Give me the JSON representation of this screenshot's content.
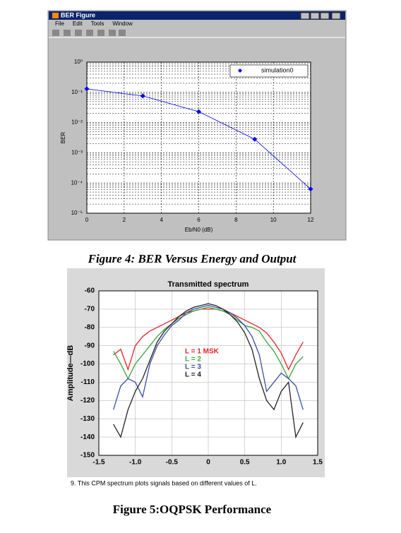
{
  "window": {
    "title": "BER Figure",
    "menu": [
      "File",
      "Edit",
      "Tools",
      "Window"
    ]
  },
  "chart_data": [
    {
      "type": "line",
      "ylabel": "BER",
      "xlabel": "Eb/N0 (dB)",
      "x": [
        0,
        3,
        6,
        9,
        12
      ],
      "series": [
        {
          "name": "simulation0",
          "color": "#0000ff",
          "values": [
            0.13,
            0.076,
            0.023,
            0.0028,
            6.3e-05
          ]
        }
      ],
      "marker": "diamond",
      "log_y": true,
      "xlim": [
        0,
        12
      ],
      "xticks": [
        0,
        2,
        4,
        6,
        8,
        10,
        12
      ],
      "ylim": [
        1e-05,
        1
      ],
      "yticks": [
        {
          "value": 1e-05,
          "label": "10⁻⁵"
        },
        {
          "value": 0.0001,
          "label": "10⁻⁴"
        },
        {
          "value": 0.001,
          "label": "10⁻³"
        },
        {
          "value": 0.01,
          "label": "10⁻²"
        },
        {
          "value": 0.1,
          "label": "10⁻¹"
        },
        {
          "value": 1,
          "label": "10⁰"
        }
      ],
      "grid": true,
      "legend": "upper right"
    },
    {
      "type": "line",
      "title": "Transmitted spectrum",
      "ylabel": "Amplitude—dB",
      "x": [
        -1.3,
        -1.2,
        -1.1,
        -1.0,
        -0.9,
        -0.8,
        -0.7,
        -0.6,
        -0.5,
        -0.4,
        -0.3,
        -0.2,
        -0.1,
        0,
        0.1,
        0.2,
        0.3,
        0.4,
        0.5,
        0.6,
        0.7,
        0.8,
        0.9,
        1.0,
        1.1,
        1.2,
        1.3
      ],
      "series": [
        {
          "name": "L = 1 MSK",
          "color": "#e8202a",
          "values": [
            -95,
            -92,
            -103,
            -90,
            -85,
            -82,
            -80,
            -78,
            -76,
            -74,
            -72,
            -71,
            -70,
            -70,
            -70,
            -71,
            -72,
            -74,
            -76,
            -78,
            -80,
            -83,
            -88,
            -94,
            -103,
            -95,
            -88
          ]
        },
        {
          "name": "L = 2",
          "color": "#3aa63a",
          "values": [
            -93,
            -100,
            -108,
            -100,
            -95,
            -90,
            -85,
            -81,
            -78,
            -75,
            -73,
            -71,
            -70,
            -69,
            -70,
            -71,
            -73,
            -76,
            -79,
            -80,
            -82,
            -88,
            -93,
            -100,
            -108,
            -100,
            -96
          ]
        },
        {
          "name": "L = 3",
          "color": "#3a4fa8",
          "values": [
            -125,
            -112,
            -108,
            -110,
            -118,
            -100,
            -90,
            -84,
            -79,
            -76,
            -72,
            -70,
            -69,
            -68,
            -69,
            -70,
            -72,
            -75,
            -79,
            -85,
            -95,
            -115,
            -110,
            -105,
            -108,
            -112,
            -125
          ]
        },
        {
          "name": "L = 4",
          "color": "#222222",
          "values": [
            -133,
            -140,
            -125,
            -115,
            -108,
            -98,
            -88,
            -82,
            -78,
            -74,
            -71,
            -69,
            -68,
            -67,
            -68,
            -70,
            -73,
            -77,
            -83,
            -92,
            -108,
            -120,
            -125,
            -115,
            -110,
            -140,
            -132
          ]
        }
      ],
      "xlim": [
        -1.5,
        1.5
      ],
      "xticks": [
        -1.5,
        {
          "value": -1.0,
          "label": "-1.0"
        },
        -0.5,
        0,
        0.5,
        {
          "value": 1.0,
          "label": "1.0"
        },
        1.5
      ],
      "ylim": [
        -150,
        -60
      ],
      "yticks": [
        -150,
        -140,
        -130,
        -120,
        -110,
        -100,
        -90,
        -80,
        -70,
        -60
      ],
      "grid": true,
      "legend": "center left"
    }
  ],
  "chart_note": "9. This CPM spectrum plots signals based on different values of L.",
  "captions": [
    "Figure 4: BER Versus Energy and Output",
    "Figure 5:OQPSK Performance"
  ]
}
